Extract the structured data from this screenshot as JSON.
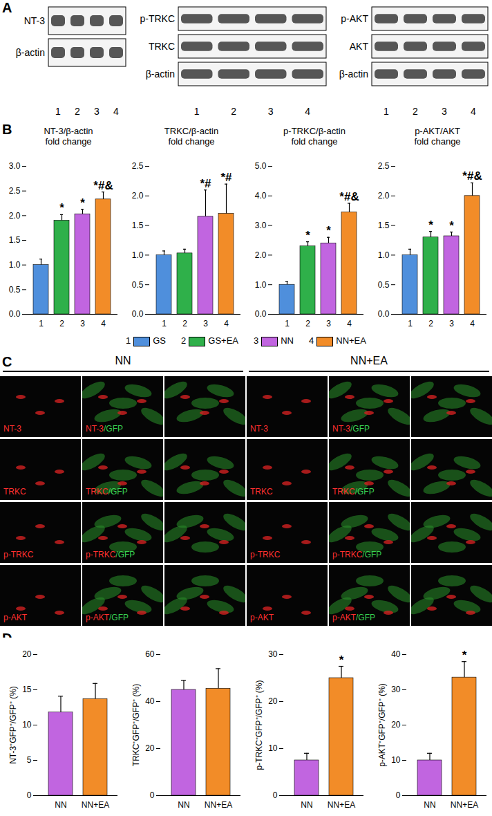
{
  "chart_data": [
    {
      "type": "bar",
      "title": "NT-3/β-actin\nfold change",
      "categories": [
        "1",
        "2",
        "3",
        "4"
      ],
      "values": [
        1.0,
        1.9,
        2.03,
        2.33
      ],
      "errors": [
        0.12,
        0.12,
        0.1,
        0.15
      ],
      "annotations": [
        null,
        "*",
        "*",
        "*#&"
      ],
      "colors": [
        "#4f8fdc",
        "#2fb04a",
        "#c165e0",
        "#f28c28"
      ],
      "ylim": [
        0,
        3
      ],
      "yticks": [
        {
          "value": 0,
          "label": "0.0"
        },
        {
          "value": 0.5,
          "label": "0.5"
        },
        {
          "value": 1,
          "label": "1.0"
        },
        {
          "value": 1.5,
          "label": "1.5"
        },
        {
          "value": 2,
          "label": "2.0"
        },
        {
          "value": 2.5,
          "label": "2.5"
        },
        {
          "value": 3,
          "label": "3.0"
        }
      ]
    },
    {
      "type": "bar",
      "title": "TRKC/β-actin\nfold change",
      "categories": [
        "1",
        "2",
        "3",
        "4"
      ],
      "values": [
        1.0,
        1.03,
        1.65,
        1.7
      ],
      "errors": [
        0.07,
        0.07,
        0.45,
        0.5
      ],
      "annotations": [
        null,
        null,
        "*#",
        "*#"
      ],
      "colors": [
        "#4f8fdc",
        "#2fb04a",
        "#c165e0",
        "#f28c28"
      ],
      "ylim": [
        0,
        2.5
      ],
      "yticks": [
        {
          "value": 0,
          "label": "0.0"
        },
        {
          "value": 0.5,
          "label": "0.5"
        },
        {
          "value": 1,
          "label": "1.0"
        },
        {
          "value": 1.5,
          "label": "1.5"
        },
        {
          "value": 2,
          "label": "2.0"
        },
        {
          "value": 2.5,
          "label": "2.5"
        }
      ]
    },
    {
      "type": "bar",
      "title": "p-TRKC/β-actin\nfold change",
      "categories": [
        "1",
        "2",
        "3",
        "4"
      ],
      "values": [
        1.0,
        2.3,
        2.4,
        3.45
      ],
      "errors": [
        0.1,
        0.15,
        0.2,
        0.3
      ],
      "annotations": [
        null,
        "*",
        "*",
        "*#&"
      ],
      "colors": [
        "#4f8fdc",
        "#2fb04a",
        "#c165e0",
        "#f28c28"
      ],
      "ylim": [
        0,
        5
      ],
      "yticks": [
        {
          "value": 0,
          "label": "0.0"
        },
        {
          "value": 1,
          "label": "1.0"
        },
        {
          "value": 2,
          "label": "2.0"
        },
        {
          "value": 3,
          "label": "3.0"
        },
        {
          "value": 4,
          "label": "4.0"
        },
        {
          "value": 5,
          "label": "5.0"
        }
      ]
    },
    {
      "type": "bar",
      "title": "p-AKT/AKT\nfold change",
      "categories": [
        "1",
        "2",
        "3",
        "4"
      ],
      "values": [
        1.0,
        1.3,
        1.32,
        2.0
      ],
      "errors": [
        0.1,
        0.1,
        0.07,
        0.22
      ],
      "annotations": [
        null,
        "*",
        "*",
        "*#&"
      ],
      "colors": [
        "#4f8fdc",
        "#2fb04a",
        "#c165e0",
        "#f28c28"
      ],
      "ylim": [
        0,
        2.5
      ],
      "yticks": [
        {
          "value": 0,
          "label": "0.0"
        },
        {
          "value": 0.5,
          "label": "0.5"
        },
        {
          "value": 1,
          "label": "1.0"
        },
        {
          "value": 1.5,
          "label": "1.5"
        },
        {
          "value": 2,
          "label": "2.0"
        },
        {
          "value": 2.5,
          "label": "2.5"
        }
      ]
    },
    {
      "type": "bar",
      "y_label": "NT-3⁺GFP⁺/GFP⁺ (%)",
      "categories": [
        "NN",
        "NN+EA"
      ],
      "values": [
        11.8,
        13.7
      ],
      "errors": [
        2.3,
        2.2
      ],
      "annotations": [
        null,
        null
      ],
      "colors": [
        "#c165e0",
        "#f28c28"
      ],
      "ylim": [
        0,
        20
      ],
      "yticks": [
        0,
        5,
        10,
        15,
        20
      ]
    },
    {
      "type": "bar",
      "y_label": "TRKC⁺GFP⁺/GFP⁺ (%)",
      "categories": [
        "NN",
        "NN+EA"
      ],
      "values": [
        45,
        45.5
      ],
      "errors": [
        4,
        8.5
      ],
      "annotations": [
        null,
        null
      ],
      "colors": [
        "#c165e0",
        "#f28c28"
      ],
      "ylim": [
        0,
        60
      ],
      "yticks": [
        0,
        20,
        40,
        60
      ]
    },
    {
      "type": "bar",
      "y_label": "p-TRKC⁺GFP⁺/GFP⁺ (%)",
      "categories": [
        "NN",
        "NN+EA"
      ],
      "values": [
        7.5,
        25
      ],
      "errors": [
        1.5,
        2.5
      ],
      "annotations": [
        null,
        "*"
      ],
      "colors": [
        "#c165e0",
        "#f28c28"
      ],
      "ylim": [
        0,
        30
      ],
      "yticks": [
        0,
        10,
        20,
        30
      ]
    },
    {
      "type": "bar",
      "y_label": "p-AKT⁺GFP⁺/GFP⁺ (%)",
      "categories": [
        "NN",
        "NN+EA"
      ],
      "values": [
        10,
        33.5
      ],
      "errors": [
        2,
        4.5
      ],
      "annotations": [
        null,
        "*"
      ],
      "colors": [
        "#c165e0",
        "#f28c28"
      ],
      "ylim": [
        0,
        40
      ],
      "yticks": [
        0,
        10,
        20,
        30,
        40
      ]
    }
  ],
  "panel_labels": [
    "A",
    "B",
    "C",
    "D"
  ],
  "blots": [
    {
      "rows": [
        "NT-3",
        "β-actin"
      ]
    },
    {
      "rows": [
        "p-TRKC",
        "TRKC",
        "β-actin"
      ]
    },
    {
      "rows": [
        "p-AKT",
        "AKT",
        "β-actin"
      ]
    }
  ],
  "lanes": [
    "1",
    "2",
    "3",
    "4"
  ],
  "legend_B": [
    {
      "label": "1",
      "name": "GS",
      "color": "#4f8fdc"
    },
    {
      "label": "2",
      "name": "GS+EA",
      "color": "#2fb04a"
    },
    {
      "label": "3",
      "name": "NN",
      "color": "#c165e0"
    },
    {
      "label": "4",
      "name": "NN+EA",
      "color": "#f28c28"
    }
  ],
  "images": {
    "columns": [
      "NN",
      "NN+EA"
    ],
    "markers": [
      "NT-3",
      "TRKC",
      "p-TRKC",
      "p-AKT"
    ],
    "merge_suffix": "/GFP",
    "marker_color": "#ff3030",
    "merge_color": "#39d353"
  }
}
